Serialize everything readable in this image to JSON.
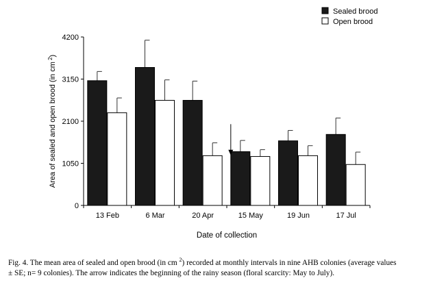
{
  "chart_data": {
    "type": "bar",
    "categories": [
      "13 Feb",
      "6 Mar",
      "20 Apr",
      "15 May",
      "19 Jun",
      "17 Jul"
    ],
    "series": [
      {
        "name": "Sealed brood",
        "color": "#1a1a1a",
        "values": [
          3110,
          3440,
          2620,
          1340,
          1610,
          1770
        ],
        "error": [
          230,
          680,
          480,
          280,
          260,
          410
        ]
      },
      {
        "name": "Open brood",
        "color": "#ffffff",
        "values": [
          2310,
          2620,
          1240,
          1220,
          1240,
          1020
        ],
        "error": [
          370,
          510,
          320,
          170,
          250,
          310
        ]
      }
    ],
    "xlabel": "Date of collection",
    "ylabel_main": "Area of sealed and open brood (in cm",
    "ylabel_sup": "2",
    "ylabel_end": ")",
    "yticks": [
      0,
      1050,
      2100,
      3150,
      4200
    ],
    "ylim": [
      0,
      4200
    ],
    "annotation": {
      "type": "arrow",
      "category": "15 May",
      "description_visible": false
    },
    "legend_position": "top-right"
  },
  "caption": {
    "part1": "Fig. 4. The mean area of sealed and open brood (in cm ",
    "sup": "2",
    "part2": ") recorded at monthly intervals in nine AHB colonies (average values",
    "line2": "± SE; n= 9 colonies). The arrow indicates the beginning of the rainy season (floral scarcity: May to July)."
  }
}
